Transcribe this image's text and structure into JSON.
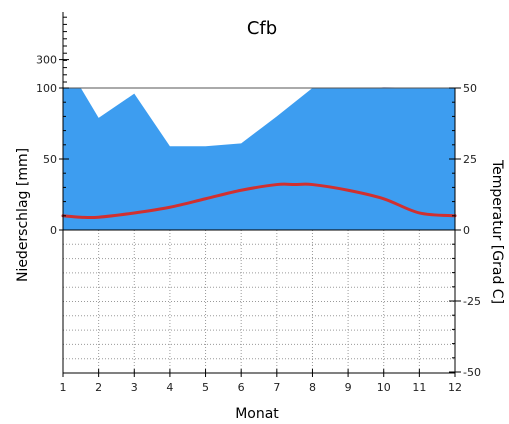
{
  "chart_data": {
    "type": "line",
    "title": "Cfb",
    "xlabel": "Monat",
    "ylabel_left": "Niederschlag [mm]",
    "ylabel_right": "Temperatur [Grad C]",
    "categories": [
      "1",
      "2",
      "3",
      "4",
      "5",
      "6",
      "7",
      "8",
      "9",
      "10",
      "11",
      "12"
    ],
    "x_ticks": [
      1,
      2,
      3,
      4,
      5,
      6,
      7,
      8,
      9,
      10,
      11,
      12
    ],
    "precip_axis": {
      "ticks": [
        0,
        50,
        100,
        300
      ],
      "linear_range": [
        0,
        100
      ]
    },
    "temp_axis": {
      "ticks": [
        -50,
        -25,
        0,
        25,
        50
      ],
      "range": [
        -50,
        50
      ]
    },
    "precip_series": {
      "name": "Niederschlag",
      "x": [
        1,
        1.5,
        2,
        3,
        4,
        5,
        6,
        7,
        8,
        9,
        10,
        11,
        12
      ],
      "values": [
        102,
        100,
        79,
        96,
        59,
        59,
        61,
        80,
        100,
        103,
        104,
        102,
        102
      ]
    },
    "temp_series": {
      "name": "Temperatur",
      "x": [
        1,
        1.5,
        2,
        3,
        4,
        5,
        6,
        7,
        7.5,
        8,
        9,
        10,
        11,
        12
      ],
      "values": [
        5,
        4.5,
        4.5,
        6,
        8,
        11,
        14,
        16,
        16,
        16,
        14,
        11,
        6,
        5
      ]
    },
    "colors": {
      "precip_fill": "#3d9df0",
      "precip_excess": "#1a2fb5",
      "temp_line": "#d03030",
      "grid": "#9a9a9a"
    },
    "grid": true
  }
}
